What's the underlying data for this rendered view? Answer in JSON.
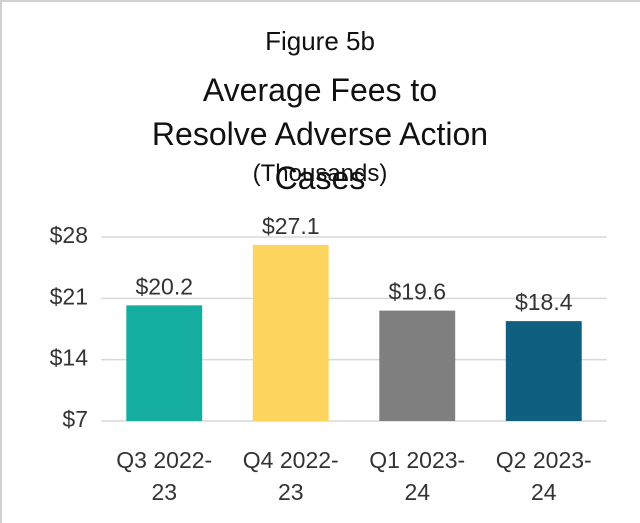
{
  "chart_data": {
    "type": "bar",
    "subtitle_top": "Figure 5b",
    "title": "Average Fees to Resolve Adverse Action Cases",
    "subtitle": "(Thousands)",
    "categories": [
      "Q3 2022-23",
      "Q4 2022-23",
      "Q1 2023-24",
      "Q2 2023-24"
    ],
    "values": [
      20.2,
      27.1,
      19.6,
      18.4
    ],
    "value_labels": [
      "$20.2",
      "$27.1",
      "$19.6",
      "$18.4"
    ],
    "colors": [
      "#14ad9f",
      "#fdd55e",
      "#7f7f7f",
      "#0f5f81"
    ],
    "ylim": [
      7,
      28
    ],
    "yticks": [
      {
        "value": 7,
        "label": "$7"
      },
      {
        "value": 14,
        "label": "$14"
      },
      {
        "value": 21,
        "label": "$21"
      },
      {
        "value": 28,
        "label": "$28"
      }
    ],
    "grid": true
  }
}
